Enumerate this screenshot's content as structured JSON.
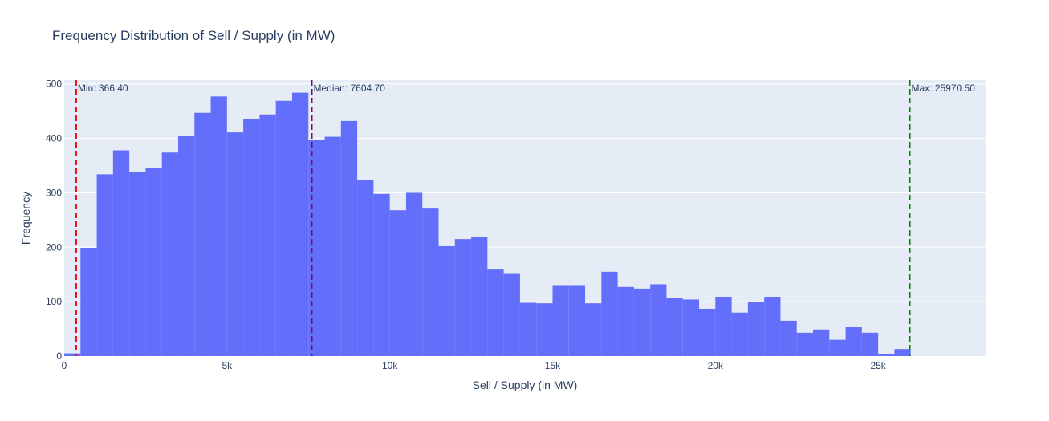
{
  "chart_data": {
    "type": "bar",
    "title": "Frequency Distribution of Sell / Supply (in MW)",
    "xlabel": "Sell / Supply (in MW)",
    "ylabel": "Frequency",
    "xlim": [
      0,
      28300
    ],
    "ylim": [
      0,
      507
    ],
    "bin_width": 500,
    "bin_start": 0,
    "values": [
      5,
      199,
      334,
      378,
      339,
      345,
      374,
      404,
      447,
      477,
      411,
      435,
      444,
      469,
      484,
      398,
      403,
      432,
      324,
      298,
      268,
      300,
      271,
      202,
      215,
      219,
      159,
      151,
      98,
      97,
      129,
      129,
      97,
      155,
      127,
      124,
      132,
      107,
      104,
      87,
      109,
      80,
      99,
      109,
      65,
      43,
      49,
      30,
      53,
      43,
      3,
      13
    ],
    "x_ticks": [
      {
        "value": 0,
        "label": "0"
      },
      {
        "value": 5000,
        "label": "5k"
      },
      {
        "value": 10000,
        "label": "10k"
      },
      {
        "value": 15000,
        "label": "15k"
      },
      {
        "value": 20000,
        "label": "20k"
      },
      {
        "value": 25000,
        "label": "25k"
      }
    ],
    "y_ticks": [
      {
        "value": 0,
        "label": "0"
      },
      {
        "value": 100,
        "label": "100"
      },
      {
        "value": 200,
        "label": "200"
      },
      {
        "value": 300,
        "label": "300"
      },
      {
        "value": 400,
        "label": "400"
      },
      {
        "value": 500,
        "label": "500"
      }
    ],
    "reference_lines": [
      {
        "name": "min",
        "value": 366.4,
        "label": "Min: 366.40",
        "color": "#ff0000"
      },
      {
        "name": "median",
        "value": 7604.7,
        "label": "Median: 7604.70",
        "color": "#800080"
      },
      {
        "name": "max",
        "value": 25970.5,
        "label": "Max: 25970.50",
        "color": "#008000"
      }
    ],
    "colors": {
      "bar": "#636efa",
      "plot_bg": "#e5ecf6",
      "grid": "#ffffff",
      "text": "#2a3f5f"
    },
    "grid": true
  }
}
